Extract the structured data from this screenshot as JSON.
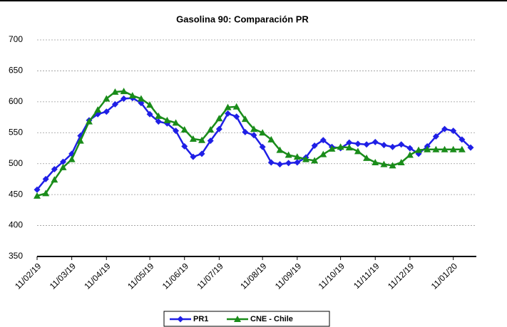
{
  "chart_data": {
    "type": "line",
    "title": "Gasolina 90: Comparación PR",
    "categories": [
      "11/02/19",
      null,
      null,
      null,
      "11/03/19",
      null,
      null,
      null,
      "11/04/19",
      null,
      null,
      null,
      null,
      "11/05/19",
      null,
      null,
      null,
      "11/06/19",
      null,
      null,
      null,
      "11/07/19",
      null,
      null,
      null,
      null,
      "11/08/19",
      null,
      null,
      null,
      "11/09/19",
      null,
      null,
      null,
      null,
      "11/10/19",
      null,
      null,
      null,
      "11/11/19",
      null,
      null,
      null,
      "11/12/19",
      null,
      null,
      null,
      null,
      "11/01/20",
      null,
      null
    ],
    "series": [
      {
        "name": "PR1",
        "color": "#1f1fe6",
        "marker": "diamond",
        "values": [
          458,
          475,
          491,
          503,
          516,
          545,
          570,
          580,
          584,
          596,
          605,
          606,
          598,
          580,
          568,
          565,
          553,
          528,
          511,
          516,
          537,
          556,
          581,
          576,
          551,
          546,
          527,
          502,
          499,
          501,
          502,
          510,
          529,
          538,
          527,
          525,
          534,
          532,
          531,
          535,
          530,
          527,
          531,
          525,
          516,
          528,
          544,
          556,
          553,
          539,
          526
        ]
      },
      {
        "name": "CNE - Chile",
        "color": "#1a8c1a",
        "marker": "triangle",
        "values": [
          448,
          452,
          474,
          494,
          507,
          537,
          568,
          587,
          605,
          616,
          617,
          610,
          605,
          595,
          577,
          570,
          566,
          555,
          540,
          538,
          555,
          573,
          591,
          592,
          572,
          556,
          550,
          539,
          522,
          514,
          511,
          507,
          505,
          515,
          524,
          527,
          526,
          520,
          509,
          502,
          499,
          497,
          502,
          514,
          522,
          523,
          523,
          523,
          523,
          523,
          null
        ]
      }
    ],
    "ylim": [
      350,
      700
    ],
    "yticks": [
      350,
      400,
      450,
      500,
      550,
      600,
      650,
      700
    ],
    "grid": true,
    "legend": "bottom"
  }
}
